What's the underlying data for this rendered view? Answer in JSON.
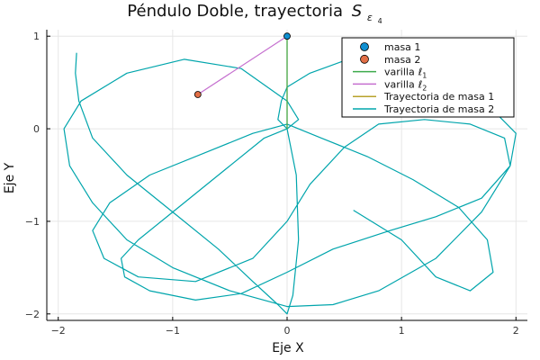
{
  "chart_data": {
    "type": "line",
    "title": "Péndulo Doble, trayectoria",
    "title_math": "S",
    "title_sub": "ε",
    "title_subsub": "4",
    "xlabel": "Eje X",
    "ylabel": "Eje Y",
    "xlim": [
      -2.1,
      2.1
    ],
    "ylim": [
      -2.07,
      1.07
    ],
    "xticks": [
      -2,
      -1,
      0,
      1,
      2
    ],
    "yticks": [
      -2,
      -1,
      0,
      1
    ],
    "xtick_labels": [
      "−2",
      "−1",
      "0",
      "1",
      "2"
    ],
    "ytick_labels": [
      "−2",
      "−1",
      "0",
      "1"
    ],
    "grid": true,
    "legend_position": "top-right",
    "series": [
      {
        "name": "masa 1",
        "kind": "scatter",
        "color": "#0f8fd1",
        "x": [
          0.0
        ],
        "y": [
          1.0
        ]
      },
      {
        "name": "masa 2",
        "kind": "scatter",
        "color": "#e26f46",
        "x": [
          -0.78
        ],
        "y": [
          0.37
        ]
      },
      {
        "name": "varilla",
        "name_math": "ℓ",
        "name_sub": "1",
        "kind": "line",
        "color": "#3daa4b",
        "x": [
          0.0,
          0.0
        ],
        "y": [
          0.0,
          1.0
        ]
      },
      {
        "name": "varilla",
        "name_math": "ℓ",
        "name_sub": "2",
        "kind": "line",
        "color": "#c56fcf",
        "x": [
          0.0,
          -0.78
        ],
        "y": [
          1.0,
          0.37
        ]
      },
      {
        "name": "Trayectoria de masa 1",
        "kind": "line",
        "color": "#b8a22b",
        "x": [
          0.0,
          0.0
        ],
        "y": [
          0.0,
          1.0
        ]
      },
      {
        "name": "Trayectoria de masa 2",
        "kind": "line",
        "color": "#00a5ac",
        "x": [
          -1.84,
          -1.85,
          -1.82,
          -1.7,
          -1.4,
          -1.0,
          -0.6,
          -0.3,
          -0.08,
          0.0,
          0.05,
          0.1,
          0.08,
          0.0,
          -0.08,
          -0.05,
          0.0,
          0.2,
          0.6,
          1.0,
          1.4,
          1.8,
          2.0,
          1.95,
          1.7,
          1.3,
          0.8,
          0.4,
          0.0,
          -0.5,
          -1.0,
          -1.4,
          -1.7,
          -1.9,
          -1.95,
          -1.8,
          -1.4,
          -0.9,
          -0.4,
          0.0,
          0.1,
          0.0,
          -0.2,
          -0.6,
          -1.0,
          -1.3,
          -1.45,
          -1.42,
          -1.2,
          -0.8,
          -0.4,
          0.0,
          0.4,
          0.9,
          1.3,
          1.7,
          1.95,
          1.9,
          1.6,
          1.2,
          0.8,
          0.5,
          0.2,
          0.0,
          -0.3,
          -0.8,
          -1.3,
          -1.6,
          -1.7,
          -1.55,
          -1.2,
          -0.7,
          -0.3,
          0.0,
          0.3,
          0.7,
          1.1,
          1.5,
          1.75,
          1.8,
          1.6,
          1.3,
          1.0,
          0.58
        ],
        "y": [
          0.82,
          0.6,
          0.3,
          -0.1,
          -0.5,
          -0.9,
          -1.3,
          -1.65,
          -1.9,
          -2.0,
          -1.8,
          -1.2,
          -0.5,
          0.0,
          0.1,
          0.3,
          0.45,
          0.6,
          0.78,
          0.72,
          0.5,
          0.2,
          -0.05,
          -0.4,
          -0.9,
          -1.4,
          -1.75,
          -1.9,
          -1.92,
          -1.75,
          -1.5,
          -1.2,
          -0.8,
          -0.4,
          0.0,
          0.3,
          0.6,
          0.75,
          0.65,
          0.3,
          0.1,
          0.0,
          -0.1,
          -0.5,
          -0.9,
          -1.2,
          -1.4,
          -1.6,
          -1.75,
          -1.85,
          -1.78,
          -1.55,
          -1.3,
          -1.1,
          -0.95,
          -0.75,
          -0.4,
          -0.1,
          0.05,
          0.1,
          0.05,
          -0.2,
          -0.6,
          -1.0,
          -1.4,
          -1.65,
          -1.6,
          -1.4,
          -1.1,
          -0.8,
          -0.5,
          -0.25,
          -0.05,
          0.05,
          -0.1,
          -0.3,
          -0.55,
          -0.85,
          -1.2,
          -1.55,
          -1.75,
          -1.6,
          -1.2,
          -0.88
        ]
      }
    ]
  }
}
